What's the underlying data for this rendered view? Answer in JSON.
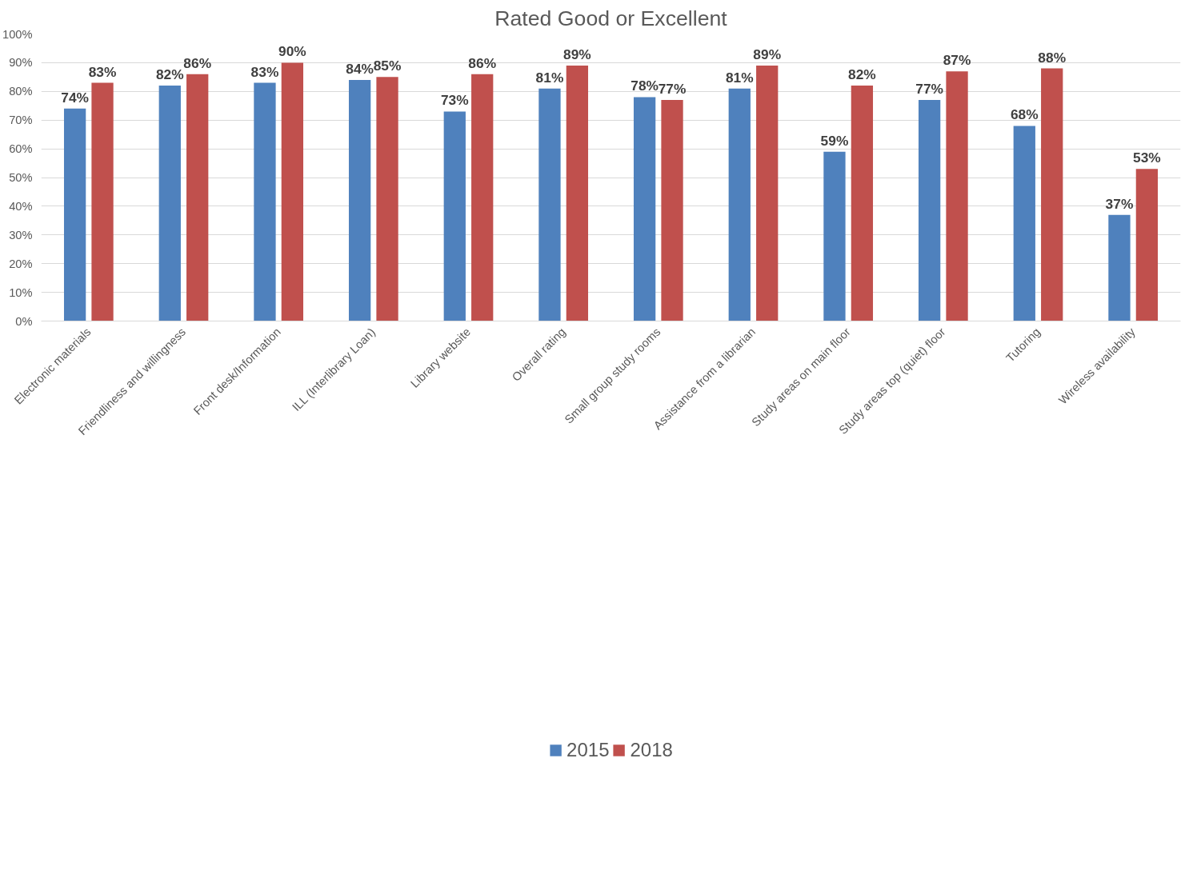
{
  "chart_data": {
    "type": "bar",
    "title": "Rated Good or Excellent",
    "categories": [
      "Electronic materials",
      "Friendliness and willingness",
      "Front desk/Information",
      "ILL (Interlibrary Loan)",
      "Library website",
      "Overall rating",
      "Small group study rooms",
      "Assistance from a librarian",
      "Study areas on main floor",
      "Study areas top (quiet) floor",
      "Tutoring",
      "Wireless availability"
    ],
    "series": [
      {
        "name": "2015",
        "color": "#4f81bd",
        "values": [
          74,
          82,
          83,
          84,
          73,
          81,
          78,
          81,
          59,
          77,
          68,
          37
        ],
        "value_labels": [
          "74%",
          "82%",
          "83%",
          "84%",
          "73%",
          "81%",
          "78%",
          "81%",
          "59%",
          "77%",
          "68%",
          "37%"
        ]
      },
      {
        "name": "2018",
        "color": "#c0504d",
        "values": [
          83,
          86,
          90,
          85,
          86,
          89,
          77,
          89,
          82,
          87,
          88,
          53
        ],
        "value_labels": [
          "83%",
          "86%",
          "90%",
          "85%",
          "86%",
          "89%",
          "77%",
          "89%",
          "82%",
          "87%",
          "88%",
          "53%"
        ]
      }
    ],
    "ylim": [
      0,
      100
    ],
    "yticks": [
      {
        "value": 0,
        "label": "0%"
      },
      {
        "value": 10,
        "label": "10%"
      },
      {
        "value": 20,
        "label": "20%"
      },
      {
        "value": 30,
        "label": "30%"
      },
      {
        "value": 40,
        "label": "40%"
      },
      {
        "value": 50,
        "label": "50%"
      },
      {
        "value": 60,
        "label": "60%"
      },
      {
        "value": 70,
        "label": "70%"
      },
      {
        "value": 80,
        "label": "80%"
      },
      {
        "value": 90,
        "label": "90%"
      },
      {
        "value": 100,
        "label": "100%"
      }
    ],
    "grid": "y",
    "legend": "bottom"
  }
}
